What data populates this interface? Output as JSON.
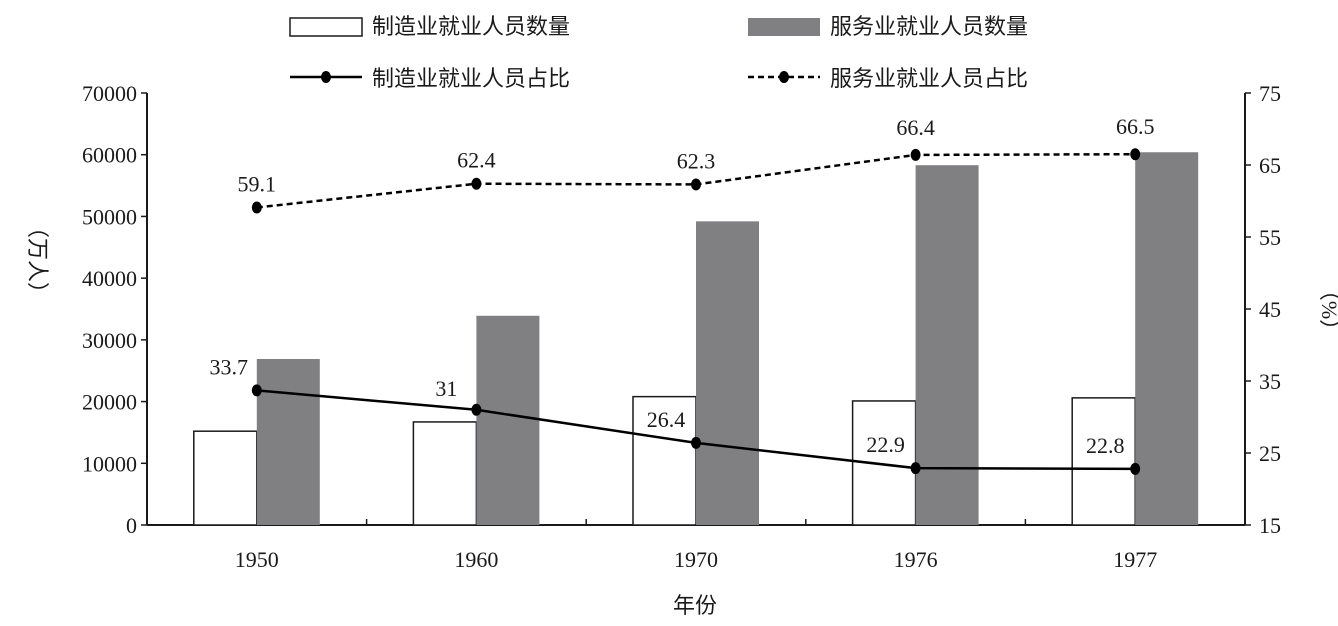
{
  "chart_data": {
    "type": "bar",
    "title": "",
    "categories": [
      "1950",
      "1960",
      "1970",
      "1976",
      "1977"
    ],
    "xlabel": "年份",
    "ylabel": "（万人）",
    "ylabel_right": "（%）",
    "ylim": [
      0,
      70000
    ],
    "ylim_right": [
      15,
      75
    ],
    "yticks": [
      0,
      10000,
      20000,
      30000,
      40000,
      50000,
      60000,
      70000
    ],
    "yticks_right": [
      15,
      25,
      35,
      45,
      55,
      65,
      75
    ],
    "grid": false,
    "legend_placement": "top",
    "series": [
      {
        "name": "制造业就业人员数量",
        "kind": "bar",
        "axis": "left",
        "color": "#ffffff",
        "stroke": "#1a1a1a",
        "values": [
          15200,
          16700,
          20800,
          20100,
          20600
        ]
      },
      {
        "name": "服务业就业人员数量",
        "kind": "bar",
        "axis": "left",
        "color": "#808083",
        "values": [
          26900,
          33900,
          49200,
          58300,
          60400
        ]
      },
      {
        "name": "制造业就业人员占比",
        "kind": "line",
        "axis": "right",
        "style": "solid",
        "color": "#000000",
        "values": [
          33.7,
          31,
          26.4,
          22.9,
          22.8
        ],
        "labels": [
          "33.7",
          "31",
          "26.4",
          "22.9",
          "22.8"
        ]
      },
      {
        "name": "服务业就业人员占比",
        "kind": "line",
        "axis": "right",
        "style": "dashed",
        "color": "#000000",
        "values": [
          59.1,
          62.4,
          62.3,
          66.4,
          66.5
        ],
        "labels": [
          "59.1",
          "62.4",
          "62.3",
          "66.4",
          "66.5"
        ]
      }
    ]
  }
}
